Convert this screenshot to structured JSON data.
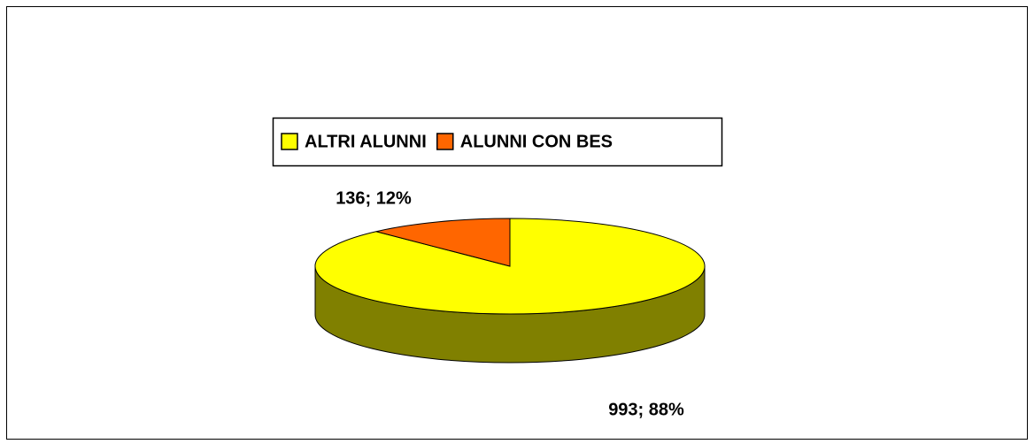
{
  "chart_data": {
    "type": "pie3d",
    "categories": [
      "ALTRI ALUNNI",
      "ALUNNI CON BES"
    ],
    "values": [
      993,
      136
    ],
    "value_labels": [
      "993; 88%",
      "136; 12%"
    ],
    "colors": [
      "#ffff00",
      "#ff6600"
    ],
    "side_colors": [
      "#808000",
      "#803300"
    ],
    "legend": "top"
  }
}
